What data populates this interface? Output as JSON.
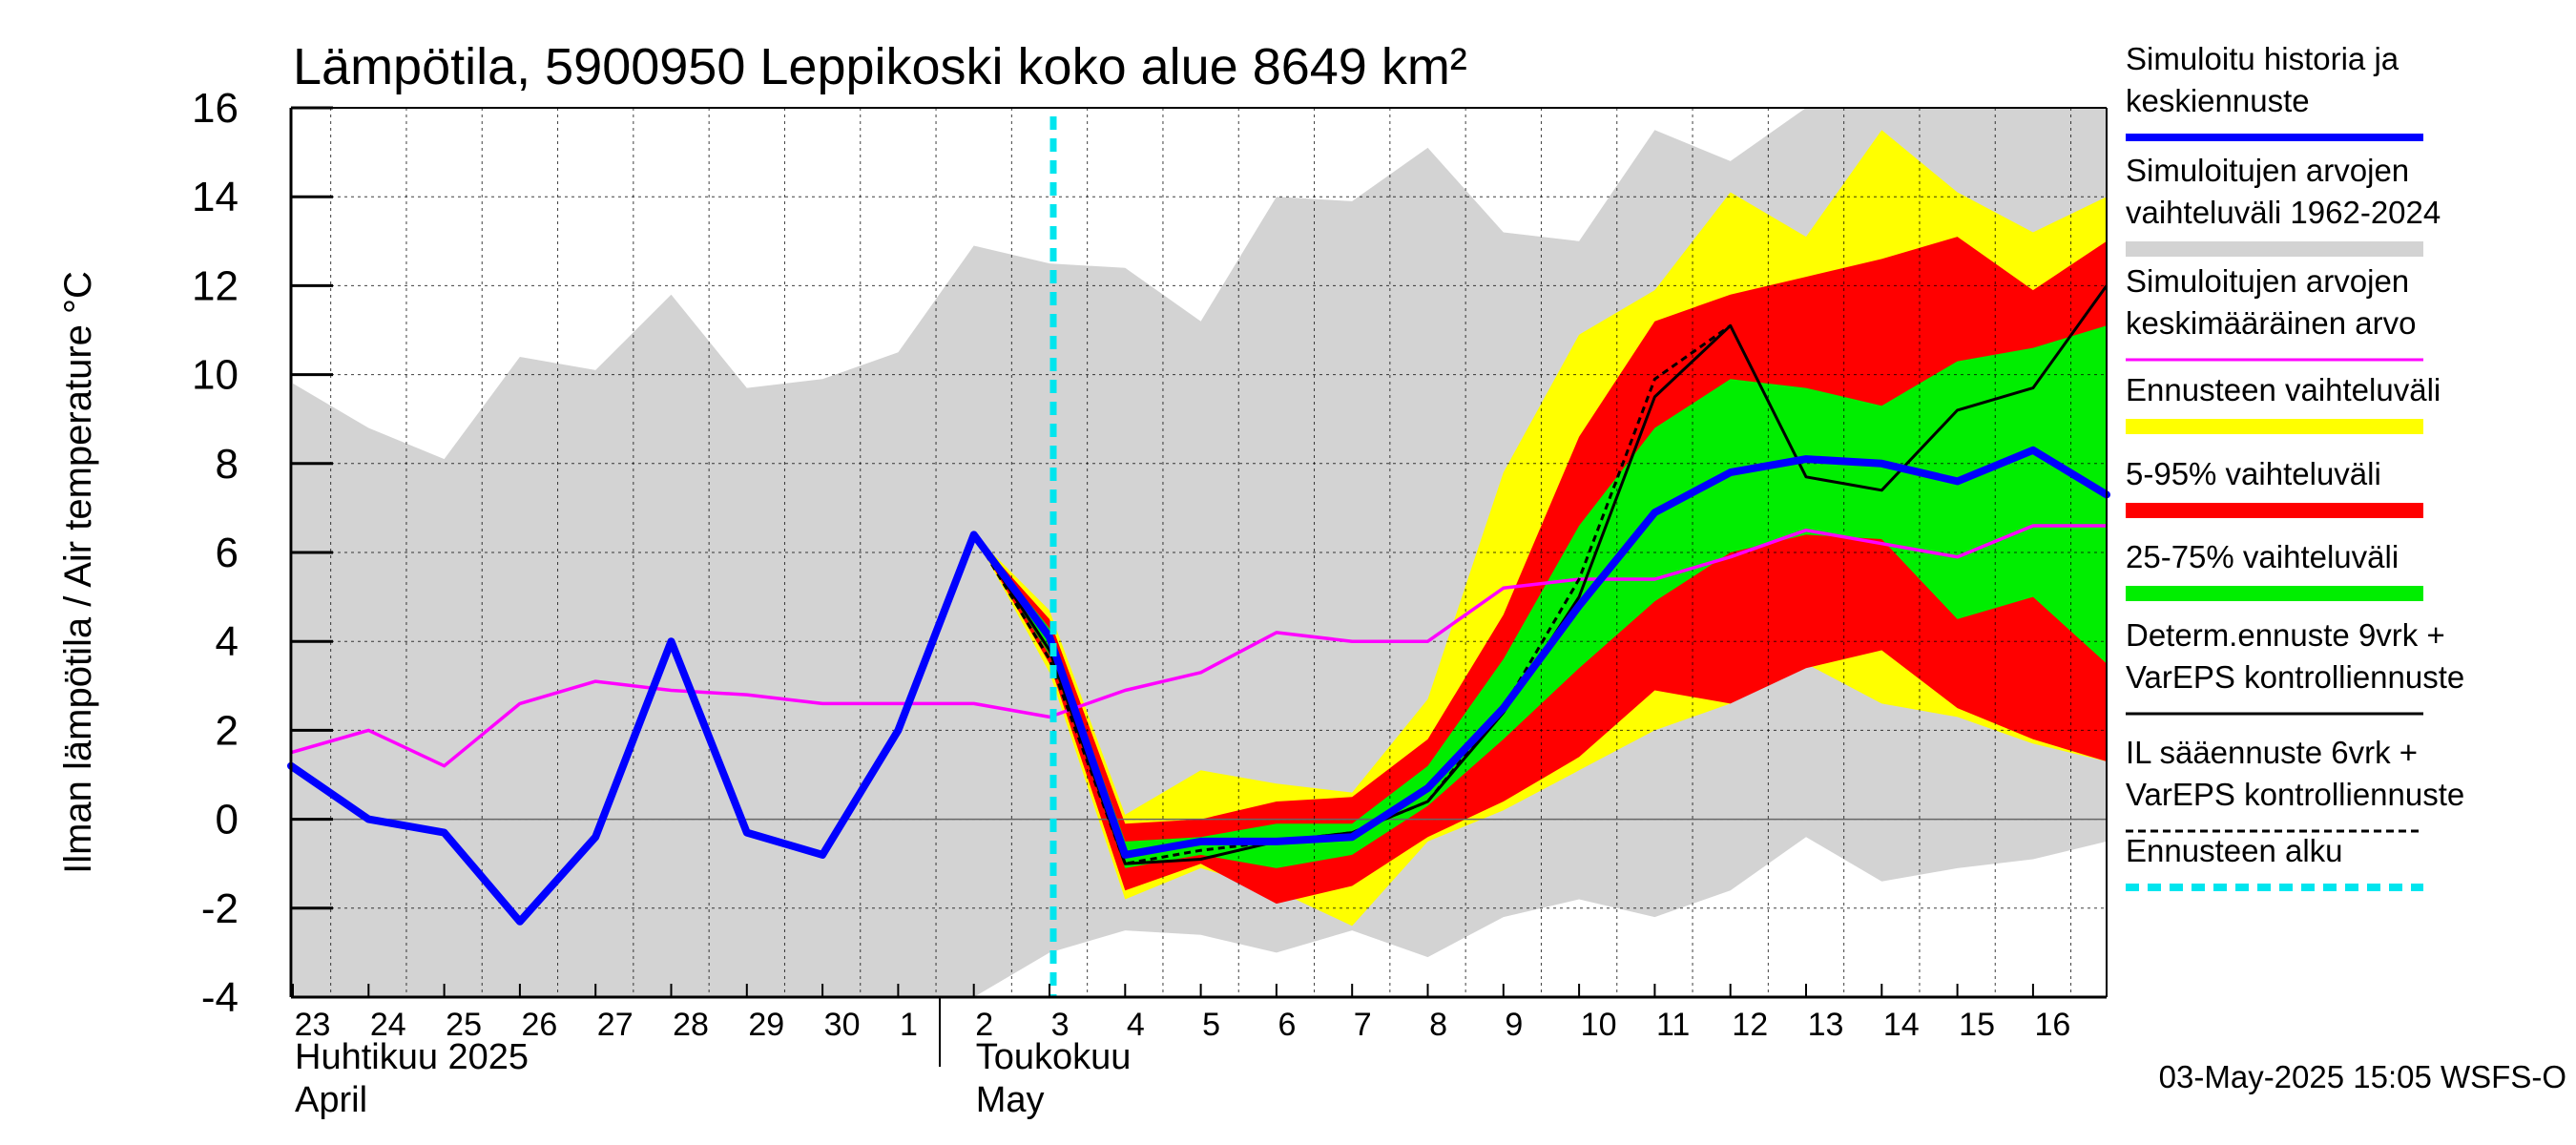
{
  "chart_data": {
    "type": "line",
    "title": "Lämpötila, 5900950 Leppikoski koko alue 8649 km²",
    "ylabel": "Ilman lämpötila / Air temperature   °C",
    "ylim": [
      -4,
      16
    ],
    "yticks": [
      -4,
      -2,
      0,
      2,
      4,
      6,
      8,
      10,
      12,
      14,
      16
    ],
    "x_day_range": [
      -0.04,
      24.0
    ],
    "x_ticks": [
      {
        "d": 0,
        "label": "23"
      },
      {
        "d": 1,
        "label": "24"
      },
      {
        "d": 2,
        "label": "25"
      },
      {
        "d": 3,
        "label": "26"
      },
      {
        "d": 4,
        "label": "27"
      },
      {
        "d": 5,
        "label": "28"
      },
      {
        "d": 6,
        "label": "29"
      },
      {
        "d": 7,
        "label": "30"
      },
      {
        "d": 8,
        "label": "1"
      },
      {
        "d": 9,
        "label": "2"
      },
      {
        "d": 10,
        "label": "3"
      },
      {
        "d": 11,
        "label": "4"
      },
      {
        "d": 12,
        "label": "5"
      },
      {
        "d": 13,
        "label": "6"
      },
      {
        "d": 14,
        "label": "7"
      },
      {
        "d": 15,
        "label": "8"
      },
      {
        "d": 16,
        "label": "9"
      },
      {
        "d": 17,
        "label": "10"
      },
      {
        "d": 18,
        "label": "11"
      },
      {
        "d": 19,
        "label": "12"
      },
      {
        "d": 20,
        "label": "13"
      },
      {
        "d": 21,
        "label": "14"
      },
      {
        "d": 22,
        "label": "15"
      },
      {
        "d": 23,
        "label": "16"
      }
    ],
    "month_labels": [
      {
        "d": 0,
        "line1": "Huhtikuu  2025",
        "line2": "April"
      },
      {
        "d": 9,
        "line1": "Toukokuu",
        "line2": "May"
      }
    ],
    "month_boundary_day": 8.5,
    "forecast_start_day": 10,
    "series": {
      "hist_range": {
        "name": "Simuloitujen arvojen vaihteluväli 1962-2024",
        "color": "#d3d3d3",
        "upper": [
          [
            0,
            9.8
          ],
          [
            1,
            8.8
          ],
          [
            2,
            8.1
          ],
          [
            3,
            10.4
          ],
          [
            4,
            10.1
          ],
          [
            5,
            11.8
          ],
          [
            6,
            9.7
          ],
          [
            7,
            9.9
          ],
          [
            8,
            10.5
          ],
          [
            9,
            12.9
          ],
          [
            10,
            12.5
          ],
          [
            11,
            12.4
          ],
          [
            12,
            11.2
          ],
          [
            13,
            14.0
          ],
          [
            14,
            13.9
          ],
          [
            15,
            15.1
          ],
          [
            16,
            13.2
          ],
          [
            17,
            13.0
          ],
          [
            18,
            15.5
          ],
          [
            19,
            14.8
          ],
          [
            20,
            16.0
          ],
          [
            21,
            16.0
          ],
          [
            22,
            16.0
          ],
          [
            23,
            16.0
          ],
          [
            24,
            16.0
          ]
        ],
        "lower": [
          [
            0,
            -4.0
          ],
          [
            1,
            -4.0
          ],
          [
            2,
            -4.0
          ],
          [
            3,
            -4.0
          ],
          [
            4,
            -4.0
          ],
          [
            5,
            -4.0
          ],
          [
            6,
            -4.0
          ],
          [
            7,
            -4.0
          ],
          [
            8,
            -4.0
          ],
          [
            9,
            -4.0
          ],
          [
            10,
            -3.0
          ],
          [
            11,
            -2.5
          ],
          [
            12,
            -2.6
          ],
          [
            13,
            -3.0
          ],
          [
            14,
            -2.5
          ],
          [
            15,
            -3.1
          ],
          [
            16,
            -2.2
          ],
          [
            17,
            -1.8
          ],
          [
            18,
            -2.2
          ],
          [
            19,
            -1.6
          ],
          [
            20,
            -0.4
          ],
          [
            21,
            -1.4
          ],
          [
            22,
            -1.1
          ],
          [
            23,
            -0.9
          ],
          [
            24,
            -0.5
          ]
        ]
      },
      "ens_range": {
        "name": "Ennusteen vaihteluväli",
        "color": "#ffff00",
        "upper": [
          [
            9,
            6.4
          ],
          [
            10,
            4.7
          ],
          [
            11,
            0.1
          ],
          [
            12,
            1.1
          ],
          [
            13,
            0.8
          ],
          [
            14,
            0.6
          ],
          [
            15,
            2.7
          ],
          [
            16,
            7.8
          ],
          [
            17,
            10.9
          ],
          [
            18,
            11.9
          ],
          [
            19,
            14.1
          ],
          [
            20,
            13.1
          ],
          [
            21,
            15.5
          ],
          [
            22,
            14.1
          ],
          [
            23,
            13.2
          ],
          [
            24,
            14.0
          ]
        ],
        "lower": [
          [
            9,
            6.4
          ],
          [
            10,
            3.3
          ],
          [
            11,
            -1.8
          ],
          [
            12,
            -1.1
          ],
          [
            13,
            -1.6
          ],
          [
            14,
            -2.4
          ],
          [
            15,
            -0.5
          ],
          [
            16,
            0.2
          ],
          [
            17,
            1.1
          ],
          [
            18,
            2.0
          ],
          [
            19,
            2.6
          ],
          [
            20,
            3.5
          ],
          [
            21,
            2.6
          ],
          [
            22,
            2.3
          ],
          [
            23,
            1.7
          ],
          [
            24,
            1.3
          ]
        ]
      },
      "p5_95": {
        "name": "5-95% vaihteluväli",
        "color": "#ff0000",
        "upper": [
          [
            9,
            6.4
          ],
          [
            10,
            4.5
          ],
          [
            11,
            -0.1
          ],
          [
            12,
            0.0
          ],
          [
            13,
            0.4
          ],
          [
            14,
            0.5
          ],
          [
            15,
            1.8
          ],
          [
            16,
            4.6
          ],
          [
            17,
            8.6
          ],
          [
            18,
            11.2
          ],
          [
            19,
            11.8
          ],
          [
            20,
            12.2
          ],
          [
            21,
            12.6
          ],
          [
            22,
            13.1
          ],
          [
            23,
            11.9
          ],
          [
            24,
            13.0
          ]
        ],
        "lower": [
          [
            9,
            6.4
          ],
          [
            10,
            3.5
          ],
          [
            11,
            -1.6
          ],
          [
            12,
            -1.0
          ],
          [
            13,
            -1.9
          ],
          [
            14,
            -1.5
          ],
          [
            15,
            -0.4
          ],
          [
            16,
            0.4
          ],
          [
            17,
            1.4
          ],
          [
            18,
            2.9
          ],
          [
            19,
            2.6
          ],
          [
            20,
            3.4
          ],
          [
            21,
            3.8
          ],
          [
            22,
            2.5
          ],
          [
            23,
            1.8
          ],
          [
            24,
            1.3
          ]
        ]
      },
      "p25_75": {
        "name": "25-75% vaihteluväli",
        "color": "#00ee00",
        "upper": [
          [
            9,
            6.4
          ],
          [
            10,
            4.3
          ],
          [
            11,
            -0.5
          ],
          [
            12,
            -0.4
          ],
          [
            13,
            -0.1
          ],
          [
            14,
            -0.1
          ],
          [
            15,
            1.2
          ],
          [
            16,
            3.6
          ],
          [
            17,
            6.6
          ],
          [
            18,
            8.8
          ],
          [
            19,
            9.9
          ],
          [
            20,
            9.7
          ],
          [
            21,
            9.3
          ],
          [
            22,
            10.3
          ],
          [
            23,
            10.6
          ],
          [
            24,
            11.1
          ]
        ],
        "lower": [
          [
            9,
            6.4
          ],
          [
            10,
            3.7
          ],
          [
            11,
            -1.1
          ],
          [
            12,
            -0.8
          ],
          [
            13,
            -1.1
          ],
          [
            14,
            -0.8
          ],
          [
            15,
            0.3
          ],
          [
            16,
            1.8
          ],
          [
            17,
            3.4
          ],
          [
            18,
            4.9
          ],
          [
            19,
            6.0
          ],
          [
            20,
            6.4
          ],
          [
            21,
            6.3
          ],
          [
            22,
            4.5
          ],
          [
            23,
            5.0
          ],
          [
            24,
            3.5
          ]
        ]
      },
      "mean_hist": {
        "name": "Simuloitujen arvojen keskimääräinen arvo",
        "color": "#ff00ff",
        "points": [
          [
            -0.04,
            1.5
          ],
          [
            1,
            2.0
          ],
          [
            2,
            1.2
          ],
          [
            3,
            2.6
          ],
          [
            4,
            3.1
          ],
          [
            5,
            2.9
          ],
          [
            6,
            2.8
          ],
          [
            7,
            2.6
          ],
          [
            8,
            2.6
          ],
          [
            9,
            2.6
          ],
          [
            10,
            2.3
          ],
          [
            11,
            2.9
          ],
          [
            12,
            3.3
          ],
          [
            13,
            4.2
          ],
          [
            14,
            4.0
          ],
          [
            15,
            4.0
          ],
          [
            16,
            5.2
          ],
          [
            17,
            5.4
          ],
          [
            18,
            5.4
          ],
          [
            19,
            5.9
          ],
          [
            20,
            6.5
          ],
          [
            21,
            6.2
          ],
          [
            22,
            5.9
          ],
          [
            23,
            6.6
          ],
          [
            24,
            6.6
          ]
        ]
      },
      "il_forecast": {
        "name": "IL sääennuste 6vrk  +  VarEPS kontrolliennuste",
        "color": "#000000",
        "points": [
          [
            9,
            6.4
          ],
          [
            10,
            3.6
          ],
          [
            11,
            -1.0
          ],
          [
            12,
            -0.7
          ],
          [
            13,
            -0.5
          ],
          [
            14,
            -0.3
          ],
          [
            15,
            0.4
          ],
          [
            16,
            2.5
          ],
          [
            17,
            5.4
          ],
          [
            18,
            9.9
          ],
          [
            19,
            11.1
          ]
        ]
      },
      "determ": {
        "name": "Determ.ennuste 9vrk + VarEPS kontrolliennuste",
        "color": "#000000",
        "points": [
          [
            9,
            6.4
          ],
          [
            10,
            3.8
          ],
          [
            11,
            -1.0
          ],
          [
            12,
            -0.9
          ],
          [
            13,
            -0.5
          ],
          [
            14,
            -0.3
          ],
          [
            15,
            0.4
          ],
          [
            16,
            2.4
          ],
          [
            17,
            5.0
          ],
          [
            18,
            9.5
          ],
          [
            19,
            11.1
          ],
          [
            20,
            7.7
          ],
          [
            21,
            7.4
          ],
          [
            22,
            9.2
          ],
          [
            23,
            9.7
          ],
          [
            24,
            12.0
          ]
        ]
      },
      "sim": {
        "name": "Simuloitu historia ja keskiennuste",
        "color": "#0000ff",
        "points": [
          [
            -0.04,
            1.2
          ],
          [
            1,
            0.0
          ],
          [
            2,
            -0.3
          ],
          [
            3,
            -2.3
          ],
          [
            4,
            -0.4
          ],
          [
            5,
            4.0
          ],
          [
            6,
            -0.3
          ],
          [
            7,
            -0.8
          ],
          [
            8,
            2.0
          ],
          [
            9,
            6.4
          ],
          [
            10,
            4.1
          ],
          [
            11,
            -0.8
          ],
          [
            12,
            -0.5
          ],
          [
            13,
            -0.5
          ],
          [
            14,
            -0.4
          ],
          [
            15,
            0.7
          ],
          [
            16,
            2.5
          ],
          [
            17,
            4.8
          ],
          [
            18,
            6.9
          ],
          [
            19,
            7.8
          ],
          [
            20,
            8.1
          ],
          [
            21,
            8.0
          ],
          [
            22,
            7.6
          ],
          [
            23,
            8.3
          ],
          [
            24,
            7.3
          ]
        ]
      }
    },
    "legend": [
      {
        "lines": [
          "Simuloitu historia ja",
          "keskiennuste"
        ],
        "style": "thick",
        "color": "#0000ff"
      },
      {
        "lines": [
          "Simuloitujen arvojen",
          "vaihteluväli 1962-2024"
        ],
        "style": "band",
        "color": "#d3d3d3"
      },
      {
        "lines": [
          "Simuloitujen arvojen",
          "keskimääräinen arvo"
        ],
        "style": "thin",
        "color": "#ff00ff"
      },
      {
        "lines": [
          "Ennusteen vaihteluväli"
        ],
        "style": "band",
        "color": "#ffff00"
      },
      {
        "lines": [
          "5-95% vaihteluväli"
        ],
        "style": "band",
        "color": "#ff0000"
      },
      {
        "lines": [
          "25-75% vaihteluväli"
        ],
        "style": "band",
        "color": "#00ee00"
      },
      {
        "lines": [
          "Determ.ennuste 9vrk +",
          "VarEPS kontrolliennuste"
        ],
        "style": "thin",
        "color": "#000000"
      },
      {
        "lines": [
          "IL sääennuste 6vrk  +",
          "  VarEPS kontrolliennuste"
        ],
        "style": "dashed",
        "color": "#000000"
      },
      {
        "lines": [
          "Ennusteen alku"
        ],
        "style": "cyan-dashed",
        "color": "#00e5ee"
      }
    ],
    "footer": "03-May-2025 15:05 WSFS-O"
  }
}
